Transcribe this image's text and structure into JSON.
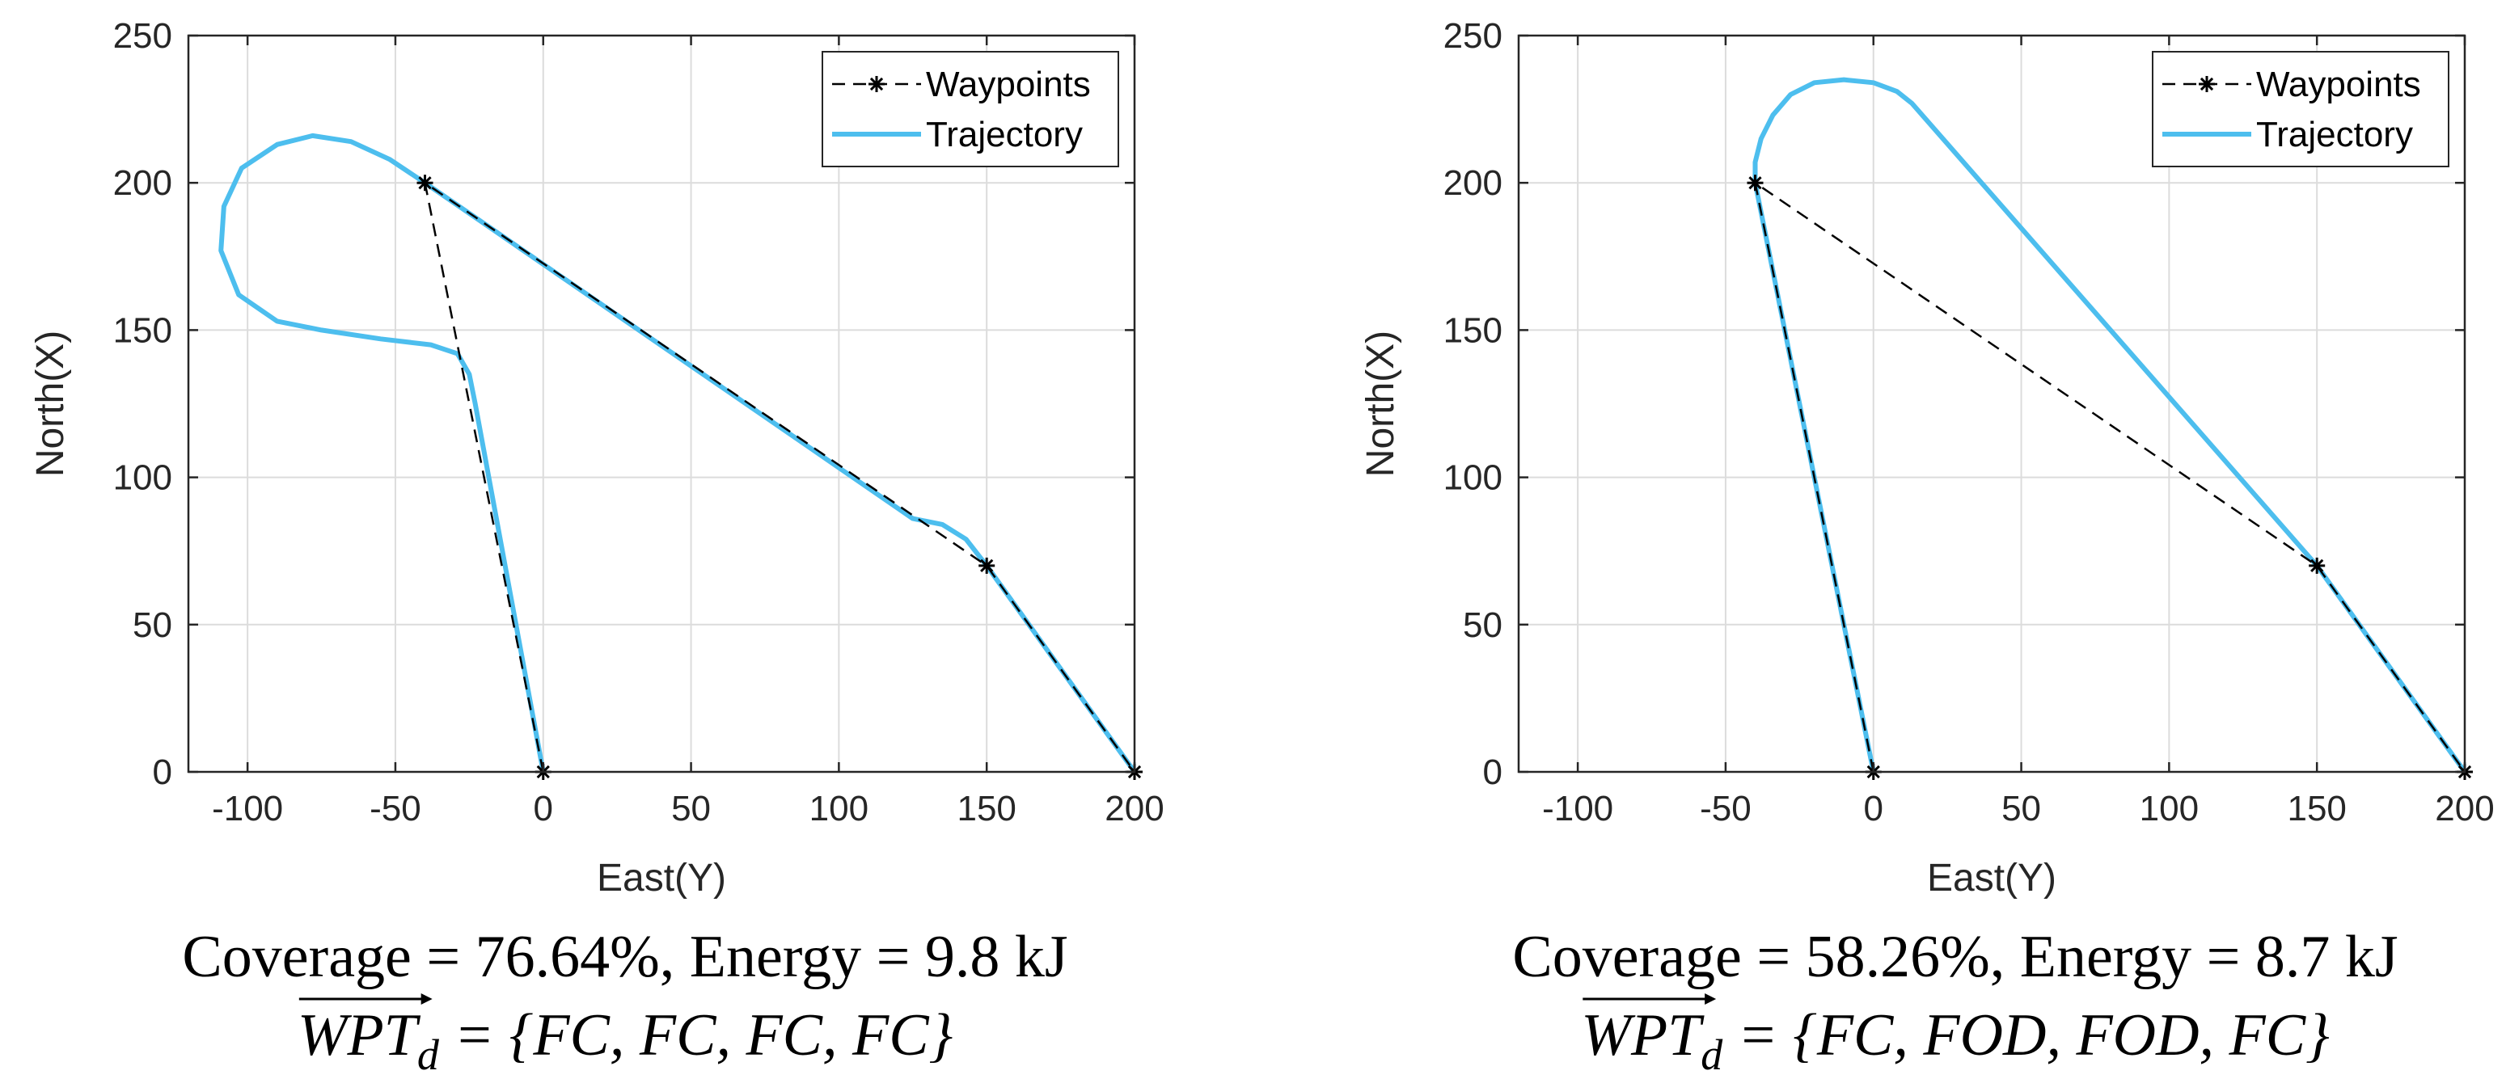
{
  "colors": {
    "trajectory": "#4DBEEE",
    "waypoints": "#000000",
    "grid": "#dcdcdc",
    "axis": "#262626"
  },
  "chart_data": [
    {
      "type": "line",
      "xlabel": "East(Y)",
      "ylabel": "North(X)",
      "xlim": [
        -120,
        200
      ],
      "ylim": [
        0,
        250
      ],
      "xticks": [
        -100,
        -50,
        0,
        50,
        100,
        150,
        200
      ],
      "yticks": [
        0,
        50,
        100,
        150,
        200,
        250
      ],
      "grid": true,
      "legend": {
        "position": "top-right",
        "entries": [
          "Waypoints",
          "Trajectory"
        ]
      },
      "series": [
        {
          "name": "Waypoints",
          "style": "dashed-star",
          "x": [
            0,
            -40,
            150,
            200
          ],
          "y": [
            0,
            200,
            70,
            0
          ]
        },
        {
          "name": "Trajectory",
          "style": "solid",
          "x": [
            0,
            -23,
            -25,
            -29,
            -38,
            -55,
            -75,
            -90,
            -103,
            -109,
            -108,
            -102,
            -90,
            -78,
            -65,
            -52,
            -40,
            125,
            135,
            143,
            150,
            200
          ],
          "y": [
            0,
            125,
            135,
            142,
            145,
            147,
            150,
            153,
            162,
            177,
            192,
            205,
            213,
            216,
            214,
            208,
            200,
            86,
            84,
            79,
            70,
            0
          ]
        }
      ],
      "caption_line1": "Coverage = 76.64%, Energy = 9.8 kJ",
      "caption_line2": "WPT_d = {FC, FC, FC, FC}",
      "caption_vec": "WPT",
      "caption_sub": "d",
      "caption_set": " = {FC, FC, FC, FC}"
    },
    {
      "type": "line",
      "xlabel": "East(Y)",
      "ylabel": "North(X)",
      "xlim": [
        -120,
        200
      ],
      "ylim": [
        0,
        250
      ],
      "xticks": [
        -100,
        -50,
        0,
        50,
        100,
        150,
        200
      ],
      "yticks": [
        0,
        50,
        100,
        150,
        200,
        250
      ],
      "grid": true,
      "legend": {
        "position": "top-right",
        "entries": [
          "Waypoints",
          "Trajectory"
        ]
      },
      "series": [
        {
          "name": "Waypoints",
          "style": "dashed-star",
          "x": [
            0,
            -40,
            150,
            200
          ],
          "y": [
            0,
            200,
            70,
            0
          ]
        },
        {
          "name": "Trajectory",
          "style": "solid",
          "x": [
            0,
            -40,
            -40,
            -38,
            -34,
            -28,
            -20,
            -10,
            0,
            8,
            13,
            150,
            200
          ],
          "y": [
            0,
            200,
            207,
            215,
            223,
            230,
            234,
            235,
            234,
            231,
            227,
            70,
            0
          ]
        }
      ],
      "caption_line1": "Coverage = 58.26%, Energy = 8.7 kJ",
      "caption_line2": "WPT_d = {FC, FOD, FOD, FC}",
      "caption_vec": "WPT",
      "caption_sub": "d",
      "caption_set": " = {FC, FOD, FOD, FC}"
    }
  ]
}
